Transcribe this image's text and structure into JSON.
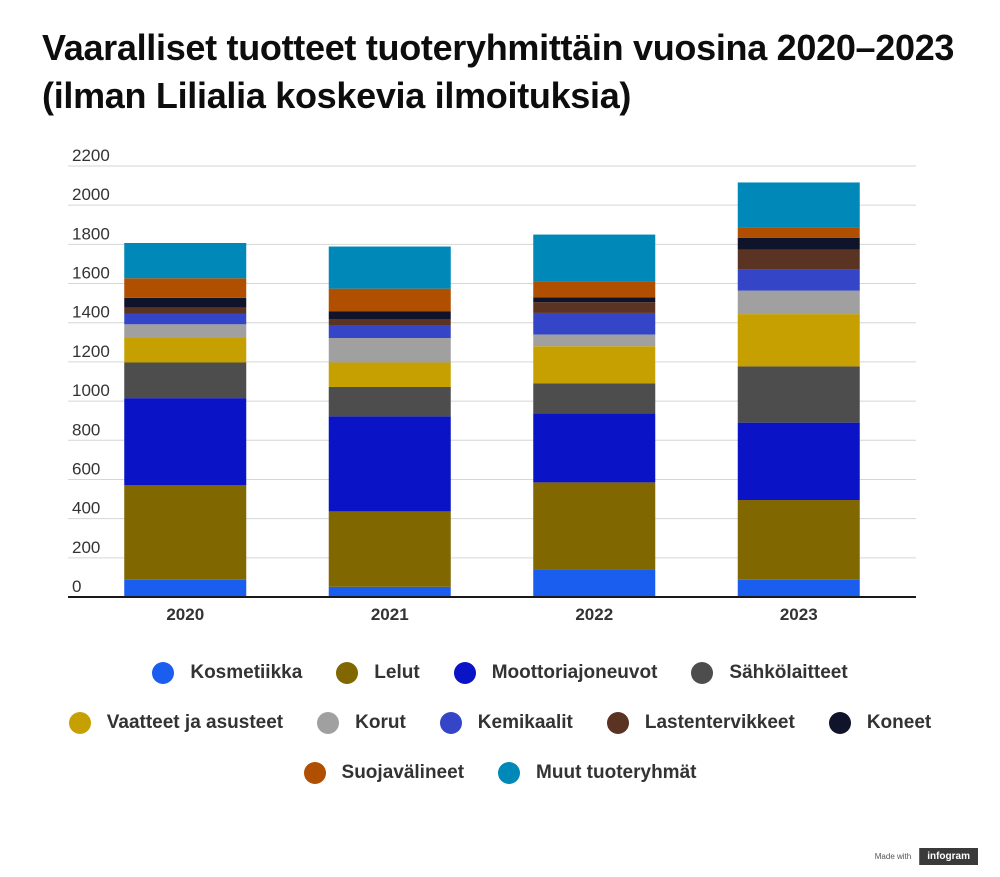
{
  "chart_data": {
    "type": "bar",
    "stacked": true,
    "title": "Vaaralliset tuotteet tuoteryhmittäin vuosina 2020–2023 (ilman Lilialia koskevia ilmoituksia)",
    "xlabel": "",
    "ylabel": "",
    "ylim": [
      0,
      2200
    ],
    "yticks": [
      0,
      200,
      400,
      600,
      800,
      1000,
      1200,
      1400,
      1600,
      1800,
      2000,
      2200
    ],
    "grid": true,
    "legend_position": "bottom",
    "categories": [
      "2020",
      "2021",
      "2022",
      "2023"
    ],
    "series": [
      {
        "name": "Kosmetiikka",
        "color": "#1a5ef0",
        "values": [
          88,
          52,
          140,
          88
        ]
      },
      {
        "name": "Lelut",
        "color": "#806700",
        "values": [
          482,
          385,
          445,
          407
        ]
      },
      {
        "name": "Moottoriajoneuvot",
        "color": "#0a14c6",
        "values": [
          445,
          485,
          353,
          395
        ]
      },
      {
        "name": "Sähkölaitteet",
        "color": "#4d4d4d",
        "values": [
          182,
          150,
          152,
          287
        ]
      },
      {
        "name": "Vaatteet ja asusteet",
        "color": "#c6a000",
        "values": [
          125,
          125,
          190,
          267
        ]
      },
      {
        "name": "Korut",
        "color": "#a0a0a0",
        "values": [
          70,
          125,
          60,
          120
        ]
      },
      {
        "name": "Kemikaalit",
        "color": "#3545c8",
        "values": [
          55,
          62,
          110,
          110
        ]
      },
      {
        "name": "Lastentervikkeet",
        "color": "#5a3322",
        "values": [
          30,
          35,
          55,
          100
        ]
      },
      {
        "name": "Koneet",
        "color": "#10142a",
        "values": [
          50,
          40,
          25,
          60
        ]
      },
      {
        "name": "Suojavälineet",
        "color": "#b04f00",
        "values": [
          100,
          115,
          80,
          50
        ]
      },
      {
        "name": "Muut tuoteryhmät",
        "color": "#0088b8",
        "values": [
          180,
          215,
          240,
          232
        ]
      }
    ]
  },
  "legend_rows": [
    [
      "Kosmetiikka",
      "Lelut",
      "Moottoriajoneuvot",
      "Sähkölaitteet"
    ],
    [
      "Vaatteet ja asusteet",
      "Korut",
      "Kemikaalit",
      "Lastentervikkeet",
      "Koneet"
    ],
    [
      "Suojavälineet",
      "Muut tuoteryhmät"
    ]
  ],
  "footer": {
    "made_with": "Made with",
    "brand": "infogram"
  }
}
